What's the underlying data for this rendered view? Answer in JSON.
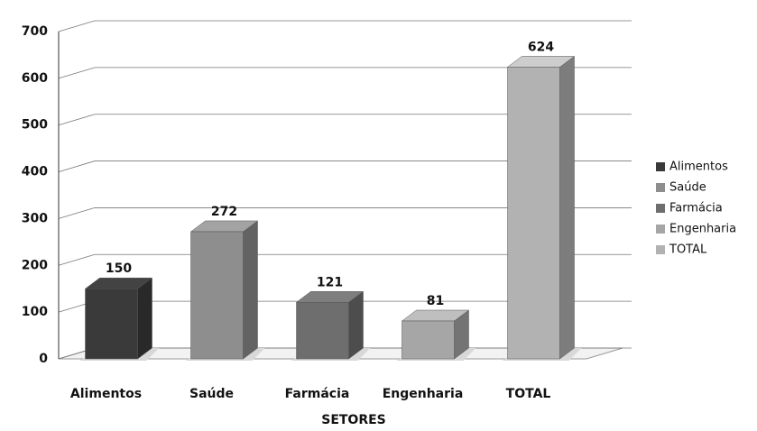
{
  "chart_data": {
    "type": "bar3d",
    "categories": [
      "Alimentos",
      "Saúde",
      "Farmácia",
      "Engenharia",
      "TOTAL"
    ],
    "values": [
      150,
      272,
      121,
      81,
      624
    ],
    "colors": [
      "#3a3a3a",
      "#8e8e8e",
      "#6e6e6e",
      "#a6a6a6",
      "#b2b2b2"
    ],
    "x_label": "SETORES",
    "ylim": [
      0,
      700
    ],
    "yticks": [
      0,
      100,
      200,
      300,
      400,
      500,
      600,
      700
    ],
    "grid": true,
    "legend": "right"
  }
}
